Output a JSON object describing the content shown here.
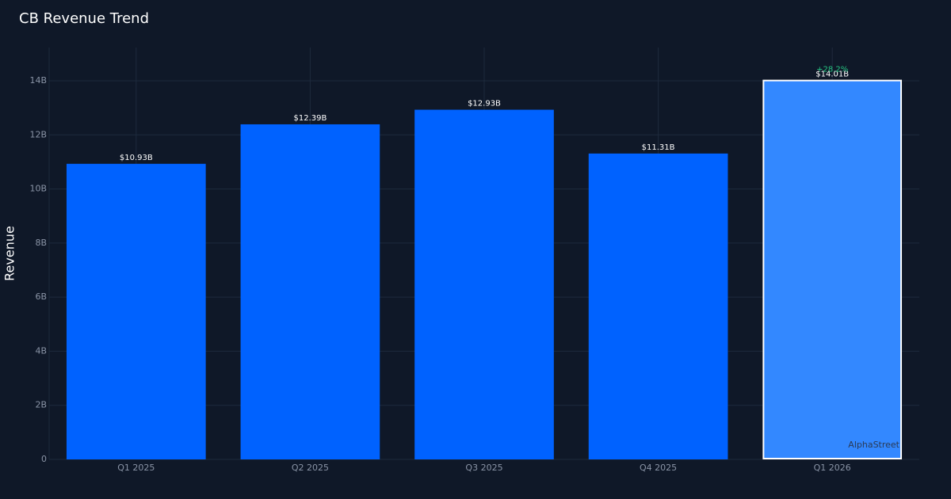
{
  "chart_data": {
    "type": "bar",
    "title": "CB Revenue Trend",
    "y_label": "Revenue",
    "categories": [
      "Q1 2025",
      "Q2 2025",
      "Q3 2025",
      "Q4 2025",
      "Q1 2026"
    ],
    "values": [
      10.93,
      12.39,
      12.93,
      11.31,
      14.01
    ],
    "value_labels": [
      "$10.93B",
      "$12.39B",
      "$12.93B",
      "$11.31B",
      "$14.01B"
    ],
    "color": "#0062ff",
    "highlight_index": 4,
    "highlight_color": "#3388ff",
    "annotation": "+28.2%",
    "watermark": "AlphaStreet",
    "ylim": [
      0,
      15.23
    ],
    "yticks": [
      0,
      {
        "value": 2,
        "label": "2B"
      },
      {
        "value": 4,
        "label": "4B"
      },
      {
        "value": 6,
        "label": "6B"
      },
      {
        "value": 8,
        "label": "8B"
      },
      {
        "value": 10,
        "label": "10B"
      },
      {
        "value": 12,
        "label": "12B"
      },
      {
        "value": 14,
        "label": "14B"
      }
    ],
    "grid": true
  }
}
